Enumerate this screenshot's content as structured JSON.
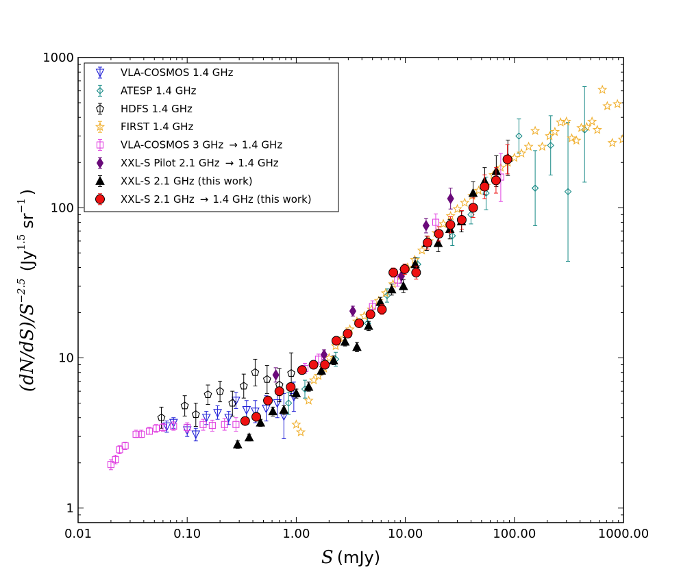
{
  "chart_data": {
    "type": "scatter",
    "xscale": "log",
    "yscale": "log",
    "xlim": [
      0.01,
      1000
    ],
    "ylim": [
      0.8,
      1000
    ],
    "xlabel_var": "S",
    "xlabel_unit": "(mJy)",
    "ylabel_expr": "(dN/dS)/S",
    "ylabel_exp": "−2.5",
    "ylabel_unit_a": "(Jy",
    "ylabel_unit_exp": "1.5",
    "ylabel_unit_b": "sr",
    "ylabel_unit_exp2": "−1",
    "ylabel_close": ")",
    "xticks": [
      {
        "value": 0.01,
        "label": "0.01"
      },
      {
        "value": 0.1,
        "label": "0.10"
      },
      {
        "value": 1,
        "label": "1.00"
      },
      {
        "value": 10,
        "label": "10.00"
      },
      {
        "value": 100,
        "label": "100.00"
      },
      {
        "value": 1000,
        "label": "1000.00"
      }
    ],
    "yticks": [
      {
        "value": 1,
        "label": "1"
      },
      {
        "value": 10,
        "label": "10"
      },
      {
        "value": 100,
        "label": "100"
      },
      {
        "value": 1000,
        "label": "1000"
      }
    ],
    "legend_position": "top-left",
    "series": [
      {
        "name": "VLA-COSMOS 1.4 GHz",
        "marker": "triangle-down",
        "color": "#1f1fd6",
        "filled": false,
        "points": [
          {
            "x": 0.065,
            "y": 3.5,
            "lo": 3.2,
            "hi": 3.8
          },
          {
            "x": 0.075,
            "y": 3.7,
            "lo": 3.4,
            "hi": 4.0
          },
          {
            "x": 0.1,
            "y": 3.3,
            "lo": 3.0,
            "hi": 3.6
          },
          {
            "x": 0.12,
            "y": 3.1,
            "lo": 2.8,
            "hi": 3.4
          },
          {
            "x": 0.15,
            "y": 4.0,
            "lo": 3.6,
            "hi": 4.4
          },
          {
            "x": 0.19,
            "y": 4.3,
            "lo": 3.9,
            "hi": 4.8
          },
          {
            "x": 0.24,
            "y": 4.0,
            "lo": 3.6,
            "hi": 4.4
          },
          {
            "x": 0.28,
            "y": 5.2,
            "lo": 4.6,
            "hi": 5.9
          },
          {
            "x": 0.35,
            "y": 4.5,
            "lo": 3.9,
            "hi": 5.2
          },
          {
            "x": 0.42,
            "y": 4.4,
            "lo": 3.7,
            "hi": 5.2
          },
          {
            "x": 0.53,
            "y": 4.6,
            "lo": 3.8,
            "hi": 5.6
          },
          {
            "x": 0.67,
            "y": 5.0,
            "lo": 4.0,
            "hi": 6.2
          },
          {
            "x": 0.77,
            "y": 4.1,
            "lo": 2.9,
            "hi": 5.8
          },
          {
            "x": 0.95,
            "y": 5.5,
            "lo": 4.4,
            "hi": 6.9
          }
        ]
      },
      {
        "name": "ATESP 1.4 GHz",
        "marker": "diamond",
        "color": "#178a86",
        "filled": false,
        "points": [
          {
            "x": 0.85,
            "y": 5.0,
            "lo": 4.2,
            "hi": 5.9
          },
          {
            "x": 1.2,
            "y": 6.2,
            "lo": 5.4,
            "hi": 7.1
          },
          {
            "x": 2.3,
            "y": 9.8,
            "lo": 8.8,
            "hi": 10.9
          },
          {
            "x": 4.5,
            "y": 17.0,
            "lo": 15.5,
            "hi": 18.7
          },
          {
            "x": 6.8,
            "y": 26.0,
            "lo": 23.5,
            "hi": 28.8
          },
          {
            "x": 13,
            "y": 42.0,
            "lo": 38.0,
            "hi": 46.5
          },
          {
            "x": 27,
            "y": 65.0,
            "lo": 56.0,
            "hi": 75.0
          },
          {
            "x": 40,
            "y": 90.0,
            "lo": 78.0,
            "hi": 104.0
          },
          {
            "x": 55,
            "y": 125.0,
            "lo": 97.0,
            "hi": 160.0
          },
          {
            "x": 110,
            "y": 300.0,
            "lo": 230.0,
            "hi": 390.0
          },
          {
            "x": 155,
            "y": 135.0,
            "lo": 76.0,
            "hi": 240.0
          },
          {
            "x": 215,
            "y": 260.0,
            "lo": 165.0,
            "hi": 410.0
          },
          {
            "x": 310,
            "y": 128.0,
            "lo": 44.0,
            "hi": 370.0
          },
          {
            "x": 440,
            "y": 330.0,
            "lo": 148.0,
            "hi": 640.0
          }
        ]
      },
      {
        "name": "HDFS 1.4 GHz",
        "marker": "pentagon",
        "color": "#000000",
        "filled": false,
        "points": [
          {
            "x": 0.058,
            "y": 4.0,
            "lo": 3.4,
            "hi": 4.7
          },
          {
            "x": 0.095,
            "y": 4.8,
            "lo": 4.1,
            "hi": 5.6
          },
          {
            "x": 0.12,
            "y": 4.2,
            "lo": 3.5,
            "hi": 5.0
          },
          {
            "x": 0.155,
            "y": 5.7,
            "lo": 4.9,
            "hi": 6.6
          },
          {
            "x": 0.2,
            "y": 6.0,
            "lo": 5.1,
            "hi": 7.0
          },
          {
            "x": 0.26,
            "y": 5.0,
            "lo": 4.1,
            "hi": 6.0
          },
          {
            "x": 0.33,
            "y": 6.5,
            "lo": 5.4,
            "hi": 7.8
          },
          {
            "x": 0.42,
            "y": 8.0,
            "lo": 6.5,
            "hi": 9.8
          },
          {
            "x": 0.54,
            "y": 7.2,
            "lo": 5.8,
            "hi": 8.9
          },
          {
            "x": 0.7,
            "y": 6.6,
            "lo": 5.1,
            "hi": 8.5
          },
          {
            "x": 0.9,
            "y": 7.9,
            "lo": 5.6,
            "hi": 10.8
          }
        ]
      },
      {
        "name": "FIRST 1.4 GHz",
        "marker": "star",
        "color": "#f0b030",
        "filled": false,
        "points": [
          {
            "x": 1.0,
            "y": 3.6
          },
          {
            "x": 1.1,
            "y": 3.2
          },
          {
            "x": 1.3,
            "y": 5.2
          },
          {
            "x": 1.45,
            "y": 7.1
          },
          {
            "x": 1.6,
            "y": 7.6
          },
          {
            "x": 1.8,
            "y": 8.5
          },
          {
            "x": 2.0,
            "y": 10.0
          },
          {
            "x": 2.3,
            "y": 12.0
          },
          {
            "x": 2.7,
            "y": 13.5
          },
          {
            "x": 3.1,
            "y": 15.5
          },
          {
            "x": 3.6,
            "y": 17.5
          },
          {
            "x": 4.2,
            "y": 19.0
          },
          {
            "x": 4.9,
            "y": 21.0
          },
          {
            "x": 5.7,
            "y": 24.0
          },
          {
            "x": 6.6,
            "y": 27.0
          },
          {
            "x": 7.7,
            "y": 31.0
          },
          {
            "x": 9.0,
            "y": 35.0
          },
          {
            "x": 10.5,
            "y": 40.0
          },
          {
            "x": 12.2,
            "y": 45.0
          },
          {
            "x": 14.2,
            "y": 52.0
          },
          {
            "x": 16.5,
            "y": 60.0
          },
          {
            "x": 19.2,
            "y": 68.0
          },
          {
            "x": 22.3,
            "y": 78.0
          },
          {
            "x": 26,
            "y": 88.0
          },
          {
            "x": 30,
            "y": 98.0
          },
          {
            "x": 35,
            "y": 108.0
          },
          {
            "x": 41,
            "y": 120.0
          },
          {
            "x": 47,
            "y": 130.0
          },
          {
            "x": 55,
            "y": 140.0
          },
          {
            "x": 64,
            "y": 165.0
          },
          {
            "x": 75,
            "y": 185.0
          },
          {
            "x": 87,
            "y": 200.0
          },
          {
            "x": 100,
            "y": 215.0
          },
          {
            "x": 116,
            "y": 230.0
          },
          {
            "x": 135,
            "y": 255.0
          },
          {
            "x": 155,
            "y": 325.0
          },
          {
            "x": 180,
            "y": 255.0
          },
          {
            "x": 210,
            "y": 300.0
          },
          {
            "x": 235,
            "y": 320.0
          },
          {
            "x": 265,
            "y": 370.0
          },
          {
            "x": 300,
            "y": 375.0
          },
          {
            "x": 335,
            "y": 290.0
          },
          {
            "x": 370,
            "y": 280.0
          },
          {
            "x": 410,
            "y": 340.0
          },
          {
            "x": 460,
            "y": 345.0
          },
          {
            "x": 515,
            "y": 375.0
          },
          {
            "x": 575,
            "y": 330.0
          },
          {
            "x": 640,
            "y": 610.0
          },
          {
            "x": 710,
            "y": 475.0
          },
          {
            "x": 790,
            "y": 270.0
          },
          {
            "x": 880,
            "y": 490.0
          },
          {
            "x": 980,
            "y": 285.0
          }
        ]
      },
      {
        "name": "VLA-COSMOS 3 GHz",
        "arrow_suffix": "1.4 GHz",
        "marker": "square",
        "color": "#e040e0",
        "filled": false,
        "points": [
          {
            "x": 0.02,
            "y": 1.95,
            "lo": 1.8,
            "hi": 2.1
          },
          {
            "x": 0.022,
            "y": 2.1,
            "lo": 1.97,
            "hi": 2.25
          },
          {
            "x": 0.024,
            "y": 2.45,
            "lo": 2.3,
            "hi": 2.6
          },
          {
            "x": 0.027,
            "y": 2.6,
            "lo": 2.45,
            "hi": 2.75
          },
          {
            "x": 0.034,
            "y": 3.1,
            "lo": 2.95,
            "hi": 3.3
          },
          {
            "x": 0.038,
            "y": 3.1,
            "lo": 2.95,
            "hi": 3.3
          },
          {
            "x": 0.045,
            "y": 3.25,
            "lo": 3.1,
            "hi": 3.45
          },
          {
            "x": 0.052,
            "y": 3.4,
            "lo": 3.2,
            "hi": 3.6
          },
          {
            "x": 0.06,
            "y": 3.45,
            "lo": 3.25,
            "hi": 3.65
          },
          {
            "x": 0.075,
            "y": 3.5,
            "lo": 3.3,
            "hi": 3.75
          },
          {
            "x": 0.1,
            "y": 3.45,
            "lo": 3.2,
            "hi": 3.7
          },
          {
            "x": 0.14,
            "y": 3.6,
            "lo": 3.3,
            "hi": 3.9
          },
          {
            "x": 0.17,
            "y": 3.55,
            "lo": 3.25,
            "hi": 3.85
          },
          {
            "x": 0.22,
            "y": 3.6,
            "lo": 3.3,
            "hi": 3.95
          },
          {
            "x": 0.28,
            "y": 3.6,
            "lo": 3.25,
            "hi": 4.0
          },
          {
            "x": 1.2,
            "y": 8.5,
            "lo": 7.9,
            "hi": 9.2
          },
          {
            "x": 1.6,
            "y": 9.8,
            "lo": 9.1,
            "hi": 10.6
          },
          {
            "x": 5.0,
            "y": 22.0,
            "lo": 20.0,
            "hi": 24.0
          },
          {
            "x": 8.5,
            "y": 33.0,
            "lo": 30.0,
            "hi": 36.0
          },
          {
            "x": 19.0,
            "y": 80.0,
            "lo": 70.0,
            "hi": 91.0
          },
          {
            "x": 75.0,
            "y": 160.0,
            "lo": 110.0,
            "hi": 230.0
          }
        ]
      },
      {
        "name": "XXL-S Pilot 2.1 GHz",
        "arrow_suffix": "1.4 GHz",
        "marker": "thin-diamond",
        "color": "#6a0a7a",
        "filled": true,
        "points": [
          {
            "x": 0.65,
            "y": 7.7,
            "lo": 6.9,
            "hi": 8.6
          },
          {
            "x": 1.8,
            "y": 10.5,
            "lo": 9.8,
            "hi": 11.3
          },
          {
            "x": 3.3,
            "y": 20.5,
            "lo": 19.0,
            "hi": 22.1
          },
          {
            "x": 9.2,
            "y": 35.0,
            "lo": 31.5,
            "hi": 38.9
          },
          {
            "x": 15.5,
            "y": 76.0,
            "lo": 68.0,
            "hi": 85.0
          },
          {
            "x": 26.0,
            "y": 115.0,
            "lo": 98.0,
            "hi": 135.0
          }
        ]
      },
      {
        "name": "XXL-S 2.1 GHz (this work)",
        "marker": "triangle-up",
        "color": "#000000",
        "filled": true,
        "points": [
          {
            "x": 0.29,
            "y": 2.65,
            "lo": 2.5,
            "hi": 2.8
          },
          {
            "x": 0.37,
            "y": 2.95,
            "lo": 2.8,
            "hi": 3.1
          },
          {
            "x": 0.47,
            "y": 3.7,
            "lo": 3.5,
            "hi": 3.9
          },
          {
            "x": 0.61,
            "y": 4.4,
            "lo": 4.1,
            "hi": 4.7
          },
          {
            "x": 0.77,
            "y": 4.5,
            "lo": 4.2,
            "hi": 4.8
          },
          {
            "x": 1.0,
            "y": 5.8,
            "lo": 5.4,
            "hi": 6.2
          },
          {
            "x": 1.3,
            "y": 6.4,
            "lo": 6.0,
            "hi": 6.9
          },
          {
            "x": 1.7,
            "y": 8.2,
            "lo": 7.7,
            "hi": 8.8
          },
          {
            "x": 2.2,
            "y": 9.6,
            "lo": 9.0,
            "hi": 10.3
          },
          {
            "x": 2.8,
            "y": 12.8,
            "lo": 12.0,
            "hi": 13.7
          },
          {
            "x": 3.6,
            "y": 11.8,
            "lo": 11.0,
            "hi": 12.7
          },
          {
            "x": 4.6,
            "y": 16.3,
            "lo": 15.2,
            "hi": 17.5
          },
          {
            "x": 5.9,
            "y": 23.5,
            "lo": 21.8,
            "hi": 25.3
          },
          {
            "x": 7.5,
            "y": 28.5,
            "lo": 26.2,
            "hi": 31.0
          },
          {
            "x": 9.6,
            "y": 30.0,
            "lo": 27.2,
            "hi": 33.1
          },
          {
            "x": 12.3,
            "y": 42.0,
            "lo": 38.0,
            "hi": 46.4
          },
          {
            "x": 15.7,
            "y": 58.0,
            "lo": 52.0,
            "hi": 64.7
          },
          {
            "x": 20.0,
            "y": 58.0,
            "lo": 51.0,
            "hi": 66.0
          },
          {
            "x": 25.6,
            "y": 72.0,
            "lo": 62.0,
            "hi": 83.6
          },
          {
            "x": 32.7,
            "y": 81.0,
            "lo": 69.0,
            "hi": 95.1
          },
          {
            "x": 41.8,
            "y": 125.0,
            "lo": 105.0,
            "hi": 149.0
          },
          {
            "x": 53.4,
            "y": 150.0,
            "lo": 122.0,
            "hi": 185.0
          },
          {
            "x": 68.2,
            "y": 175.0,
            "lo": 138.0,
            "hi": 222.0
          },
          {
            "x": 87.1,
            "y": 215.0,
            "lo": 164.0,
            "hi": 282.0
          }
        ]
      },
      {
        "name": "XXL-S 2.1 GHz",
        "arrow_suffix": "1.4 GHz (this work)",
        "marker": "circle",
        "color": "#ee1111",
        "filled": true,
        "points": [
          {
            "x": 0.34,
            "y": 3.8,
            "lo": 3.6,
            "hi": 4.0
          },
          {
            "x": 0.43,
            "y": 4.05,
            "lo": 3.8,
            "hi": 4.3
          },
          {
            "x": 0.55,
            "y": 5.2,
            "lo": 4.9,
            "hi": 5.5
          },
          {
            "x": 0.7,
            "y": 6.0,
            "lo": 5.6,
            "hi": 6.4
          },
          {
            "x": 0.89,
            "y": 6.4,
            "lo": 6.0,
            "hi": 6.8
          },
          {
            "x": 1.13,
            "y": 8.3,
            "lo": 7.8,
            "hi": 8.8
          },
          {
            "x": 1.44,
            "y": 9.0,
            "lo": 8.5,
            "hi": 9.5
          },
          {
            "x": 1.83,
            "y": 9.0,
            "lo": 8.5,
            "hi": 9.5
          },
          {
            "x": 2.33,
            "y": 13.0,
            "lo": 12.3,
            "hi": 13.8
          },
          {
            "x": 2.96,
            "y": 14.5,
            "lo": 13.7,
            "hi": 15.4
          },
          {
            "x": 3.77,
            "y": 17.0,
            "lo": 16.0,
            "hi": 18.1
          },
          {
            "x": 4.79,
            "y": 19.5,
            "lo": 18.3,
            "hi": 20.8
          },
          {
            "x": 6.1,
            "y": 21.0,
            "lo": 19.5,
            "hi": 22.6
          },
          {
            "x": 7.76,
            "y": 37.0,
            "lo": 34.5,
            "hi": 39.7
          },
          {
            "x": 9.87,
            "y": 39.0,
            "lo": 36.0,
            "hi": 42.2
          },
          {
            "x": 12.56,
            "y": 37.0,
            "lo": 33.5,
            "hi": 40.9
          },
          {
            "x": 15.98,
            "y": 58.5,
            "lo": 53.0,
            "hi": 64.6
          },
          {
            "x": 20.3,
            "y": 67.0,
            "lo": 60.0,
            "hi": 74.8
          },
          {
            "x": 25.9,
            "y": 77.0,
            "lo": 68.0,
            "hi": 87.2
          },
          {
            "x": 32.9,
            "y": 83.0,
            "lo": 72.0,
            "hi": 95.7
          },
          {
            "x": 41.9,
            "y": 100.0,
            "lo": 86.0,
            "hi": 116.3
          },
          {
            "x": 53.3,
            "y": 138.0,
            "lo": 115.0,
            "hi": 165.6
          },
          {
            "x": 67.8,
            "y": 152.0,
            "lo": 125.0,
            "hi": 184.9
          },
          {
            "x": 86.3,
            "y": 210.0,
            "lo": 168.0,
            "hi": 262.5
          }
        ]
      }
    ]
  }
}
